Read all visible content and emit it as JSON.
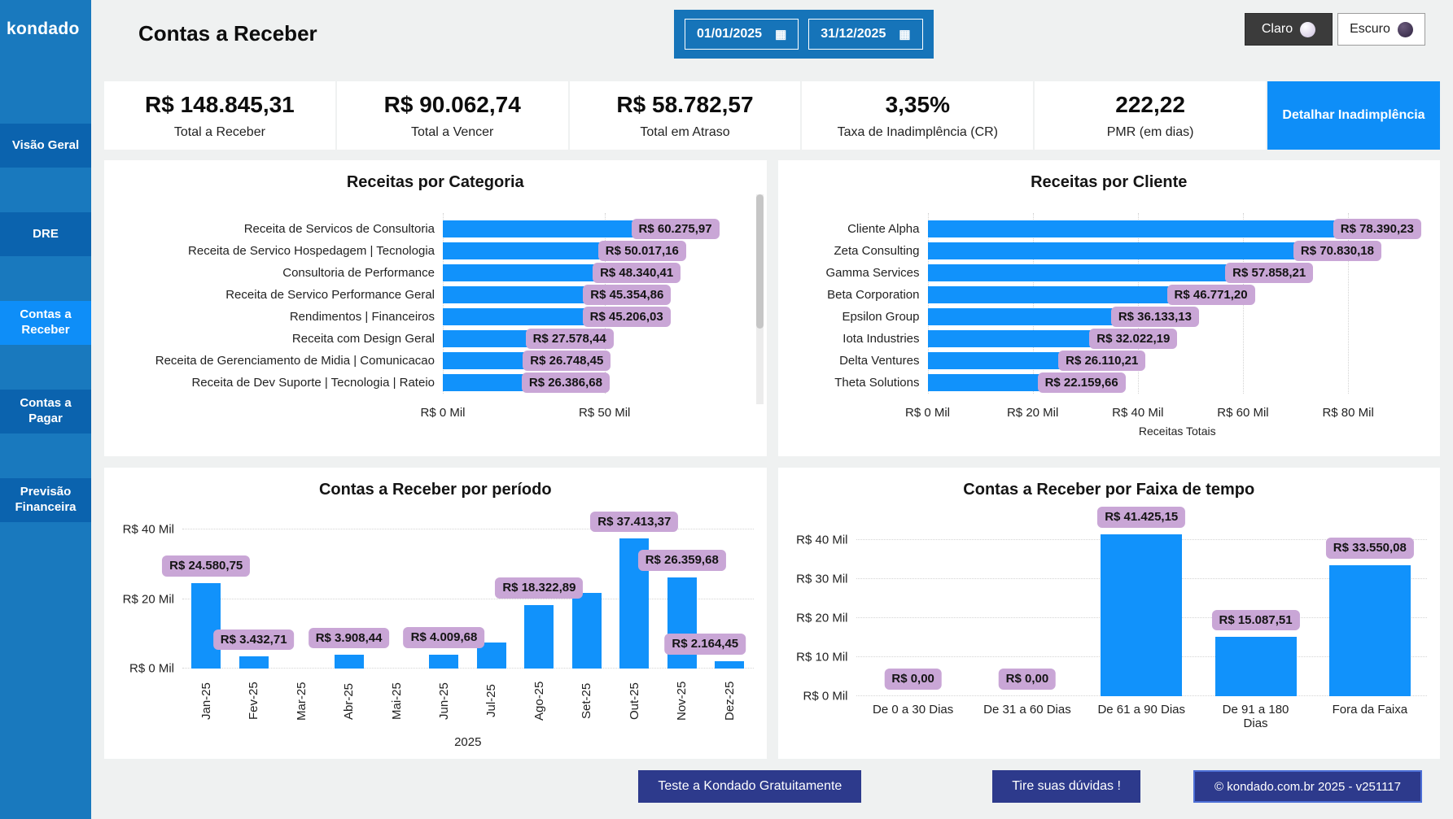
{
  "brand": {
    "logo": "kondado"
  },
  "sidebar": {
    "items": [
      {
        "label": "Visão Geral",
        "active": false
      },
      {
        "label": "DRE",
        "active": false
      },
      {
        "label": "Contas a Receber",
        "active": true
      },
      {
        "label": "Contas a Pagar",
        "active": false
      },
      {
        "label": "Previsão Financeira",
        "active": false
      }
    ]
  },
  "header": {
    "title": "Contas a Receber",
    "date_start": "01/01/2025",
    "date_end": "31/12/2025",
    "theme_light": "Claro",
    "theme_dark": "Escuro",
    "calendar_icon": "▦"
  },
  "kpis": [
    {
      "value": "R$ 148.845,31",
      "label": "Total a Receber"
    },
    {
      "value": "R$ 90.062,74",
      "label": "Total a Vencer"
    },
    {
      "value": "R$ 58.782,57",
      "label": "Total em Atraso"
    },
    {
      "value": "3,35%",
      "label": "Taxa de Inadimplência (CR)"
    },
    {
      "value": "222,22",
      "label": "PMR (em dias)"
    }
  ],
  "kpi_cta": "Detalhar Inadimplência",
  "colors": {
    "accent_blue": "#0e8ef8",
    "bar_blue": "#1192fb",
    "sidebar_blue": "#1979be",
    "sidebar_button_blue": "#0b63ae",
    "label_pill_purple": "#c9a6d6",
    "footer_navy": "#2d3a8c"
  },
  "chart_data": [
    {
      "type": "bar",
      "orientation": "horizontal",
      "title": "Receitas por Categoria",
      "categories": [
        "Receita de Servicos de Consultoria",
        "Receita de Servico Hospedagem | Tecnologia",
        "Consultoria de Performance",
        "Receita de Servico Performance Geral",
        "Rendimentos | Financeiros",
        "Receita com Design Geral",
        "Receita de Gerenciamento de Midia | Comunicacao",
        "Receita de Dev Suporte | Tecnologia | Rateio"
      ],
      "values": [
        60275.97,
        50017.16,
        48340.41,
        45354.86,
        45206.03,
        27578.44,
        26748.45,
        26386.68
      ],
      "labels": [
        "R$ 60.275,97",
        "R$ 50.017,16",
        "R$ 48.340,41",
        "R$ 45.354,86",
        "R$ 45.206,03",
        "R$ 27.578,44",
        "R$ 26.748,45",
        "R$ 26.386,68"
      ],
      "xlim": [
        0,
        96000
      ],
      "x_ticks": [
        {
          "value": 0,
          "label": "R$ 0 Mil"
        },
        {
          "value": 50000,
          "label": "R$ 50 Mil"
        }
      ],
      "xlabel": "",
      "grid": true,
      "has_scrollbar": true
    },
    {
      "type": "bar",
      "orientation": "horizontal",
      "title": "Receitas por Cliente",
      "categories": [
        "Cliente Alpha",
        "Zeta Consulting",
        "Gamma Services",
        "Beta Corporation",
        "Epsilon Group",
        "Iota Industries",
        "Delta Ventures",
        "Theta Solutions"
      ],
      "values": [
        78390.23,
        70830.18,
        57858.21,
        46771.2,
        36133.13,
        32022.19,
        26110.21,
        22159.66
      ],
      "labels": [
        "R$ 78.390,23",
        "R$ 70.830,18",
        "R$ 57.858,21",
        "R$ 46.771,20",
        "R$ 36.133,13",
        "R$ 32.022,19",
        "R$ 26.110,21",
        "R$ 22.159,66"
      ],
      "xlim": [
        0,
        95000
      ],
      "x_ticks": [
        {
          "value": 0,
          "label": "R$ 0 Mil"
        },
        {
          "value": 20000,
          "label": "R$ 20 Mil"
        },
        {
          "value": 40000,
          "label": "R$ 40 Mil"
        },
        {
          "value": 60000,
          "label": "R$ 60 Mil"
        },
        {
          "value": 80000,
          "label": "R$ 80 Mil"
        }
      ],
      "xlabel": "Receitas Totais",
      "grid": true
    },
    {
      "type": "bar",
      "orientation": "vertical",
      "title": "Contas a Receber por período",
      "categories": [
        "Jan-25",
        "Fev-25",
        "Mar-25",
        "Abr-25",
        "Mai-25",
        "Jun-25",
        "Jul-25",
        "Ago-25",
        "Set-25",
        "Out-25",
        "Nov-25",
        "Dez-25"
      ],
      "values": [
        24580.75,
        3432.71,
        0,
        3908.44,
        0,
        4009.68,
        7600,
        18322.89,
        21800,
        37413.37,
        26359.68,
        2164.45
      ],
      "labels": [
        "R$ 24.580,75",
        "R$ 3.432,71",
        null,
        "R$ 3.908,44",
        null,
        "R$ 4.009,68",
        null,
        "R$ 18.322,89",
        null,
        "R$ 37.413,37",
        "R$ 26.359,68",
        "R$ 2.164,45"
      ],
      "ylim": [
        0,
        45000
      ],
      "y_ticks": [
        {
          "value": 0,
          "label": "R$ 0 Mil"
        },
        {
          "value": 20000,
          "label": "R$ 20 Mil"
        },
        {
          "value": 40000,
          "label": "R$ 40 Mil"
        }
      ],
      "xlabel": "2025",
      "grid": true,
      "rotated_category_labels": true
    },
    {
      "type": "bar",
      "orientation": "vertical",
      "title": "Contas a Receber por Faixa de tempo",
      "categories": [
        "De 0 a 30 Dias",
        "De 31 a 60 Dias",
        "De 61 a 90 Dias",
        "De 91 a 180 Dias",
        "Fora da Faixa"
      ],
      "values": [
        0,
        0,
        41425.15,
        15087.51,
        33550.08
      ],
      "labels": [
        "R$ 0,00",
        "R$ 0,00",
        "R$ 41.425,15",
        "R$ 15.087,51",
        "R$ 33.550,08"
      ],
      "ylim": [
        0,
        47000
      ],
      "y_ticks": [
        {
          "value": 0,
          "label": "R$ 0 Mil"
        },
        {
          "value": 10000,
          "label": "R$ 10 Mil"
        },
        {
          "value": 20000,
          "label": "R$ 20 Mil"
        },
        {
          "value": 30000,
          "label": "R$ 30 Mil"
        },
        {
          "value": 40000,
          "label": "R$ 40 Mil"
        }
      ],
      "xlabel": "",
      "grid": true,
      "rotated_category_labels": false
    }
  ],
  "footer": {
    "primary": "Teste a Kondado Gratuitamente",
    "help": "Tire suas dúvidas !",
    "copyright": "© kondado.com.br 2025 - v251117"
  }
}
